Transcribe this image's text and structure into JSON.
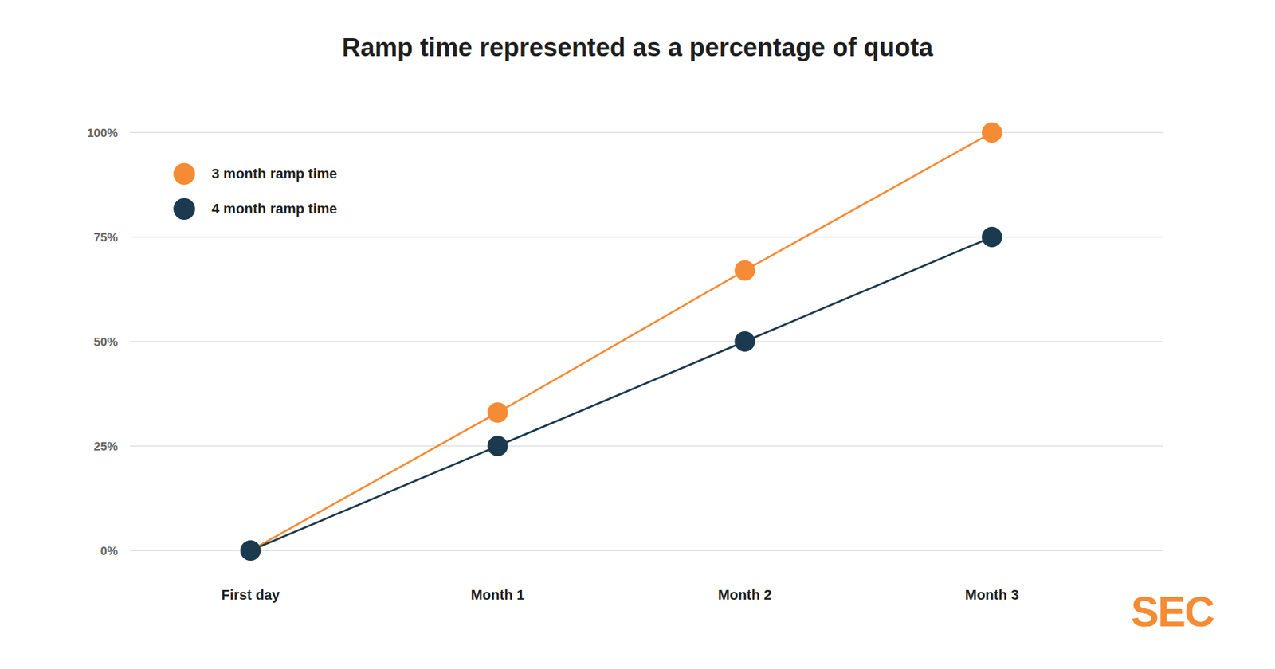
{
  "chart_data": {
    "type": "line",
    "title": "Ramp time represented as a percentage of quota",
    "categories": [
      "First day",
      "Month 1",
      "Month 2",
      "Month 3"
    ],
    "series": [
      {
        "name": "3 month ramp time",
        "color": "#f58b35",
        "values": [
          0,
          33,
          67,
          100
        ]
      },
      {
        "name": "4 month ramp time",
        "color": "#1b3a4f",
        "values": [
          0,
          25,
          50,
          75
        ]
      }
    ],
    "ylim": [
      0,
      100
    ],
    "yticks": [
      {
        "value": 0,
        "label": "0%"
      },
      {
        "value": 25,
        "label": "25%"
      },
      {
        "value": 50,
        "label": "50%"
      },
      {
        "value": 75,
        "label": "75%"
      },
      {
        "value": 100,
        "label": "100%"
      }
    ],
    "grid": true,
    "legend": "top-left",
    "marker": "circle",
    "logo": "SEC"
  }
}
